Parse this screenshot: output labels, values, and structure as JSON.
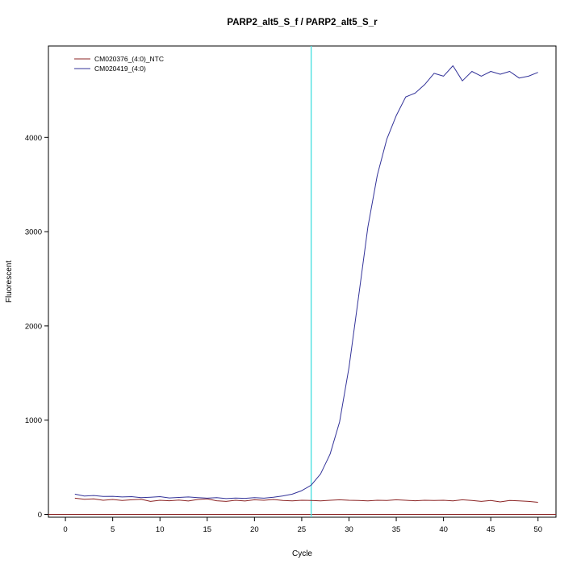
{
  "page": {
    "background": "#ffffff"
  },
  "chart_data": {
    "type": "line",
    "title": "PARP2_alt5_S_f / PARP2_alt5_S_r",
    "xlabel": "Cycle",
    "ylabel": "Fluorescent",
    "xlim": [
      -1.8,
      51.9
    ],
    "ylim": [
      -30,
      4970
    ],
    "xticks": [
      0,
      5,
      10,
      15,
      20,
      25,
      30,
      35,
      40,
      45,
      50
    ],
    "yticks": [
      0,
      1000,
      2000,
      3000,
      4000
    ],
    "grid": false,
    "legend_position": "top-left",
    "x": [
      1,
      2,
      3,
      4,
      5,
      6,
      7,
      8,
      9,
      10,
      11,
      12,
      13,
      14,
      15,
      16,
      17,
      18,
      19,
      20,
      21,
      22,
      23,
      24,
      25,
      26,
      27,
      28,
      29,
      30,
      31,
      32,
      33,
      34,
      35,
      36,
      37,
      38,
      39,
      40,
      41,
      42,
      43,
      44,
      45,
      46,
      47,
      48,
      49,
      50
    ],
    "series": [
      {
        "name": "CM020376_(4:0)_NTC",
        "color": "#8b2323",
        "values": [
          172,
          160,
          165,
          150,
          158,
          148,
          155,
          160,
          138,
          150,
          145,
          152,
          142,
          158,
          165,
          145,
          138,
          150,
          142,
          155,
          150,
          158,
          148,
          143,
          150,
          148,
          143,
          150,
          155,
          150,
          148,
          143,
          150,
          148,
          155,
          150,
          145,
          150,
          148,
          150,
          143,
          155,
          148,
          138,
          148,
          133,
          148,
          143,
          138,
          128
        ]
      },
      {
        "name": "CM020419_(4:0)",
        "color": "#333399",
        "values": [
          215,
          195,
          200,
          190,
          192,
          185,
          188,
          178,
          182,
          188,
          175,
          180,
          185,
          178,
          172,
          178,
          168,
          174,
          170,
          178,
          172,
          182,
          196,
          215,
          252,
          310,
          430,
          640,
          980,
          1560,
          2300,
          3050,
          3600,
          3980,
          4230,
          4430,
          4470,
          4560,
          4680,
          4650,
          4760,
          4600,
          4700,
          4650,
          4700,
          4670,
          4700,
          4630,
          4650,
          4690
        ]
      }
    ],
    "vline": {
      "x": 26,
      "color": "#4de0e0"
    },
    "hline": {
      "y": 0,
      "color": "#8b2323"
    }
  }
}
